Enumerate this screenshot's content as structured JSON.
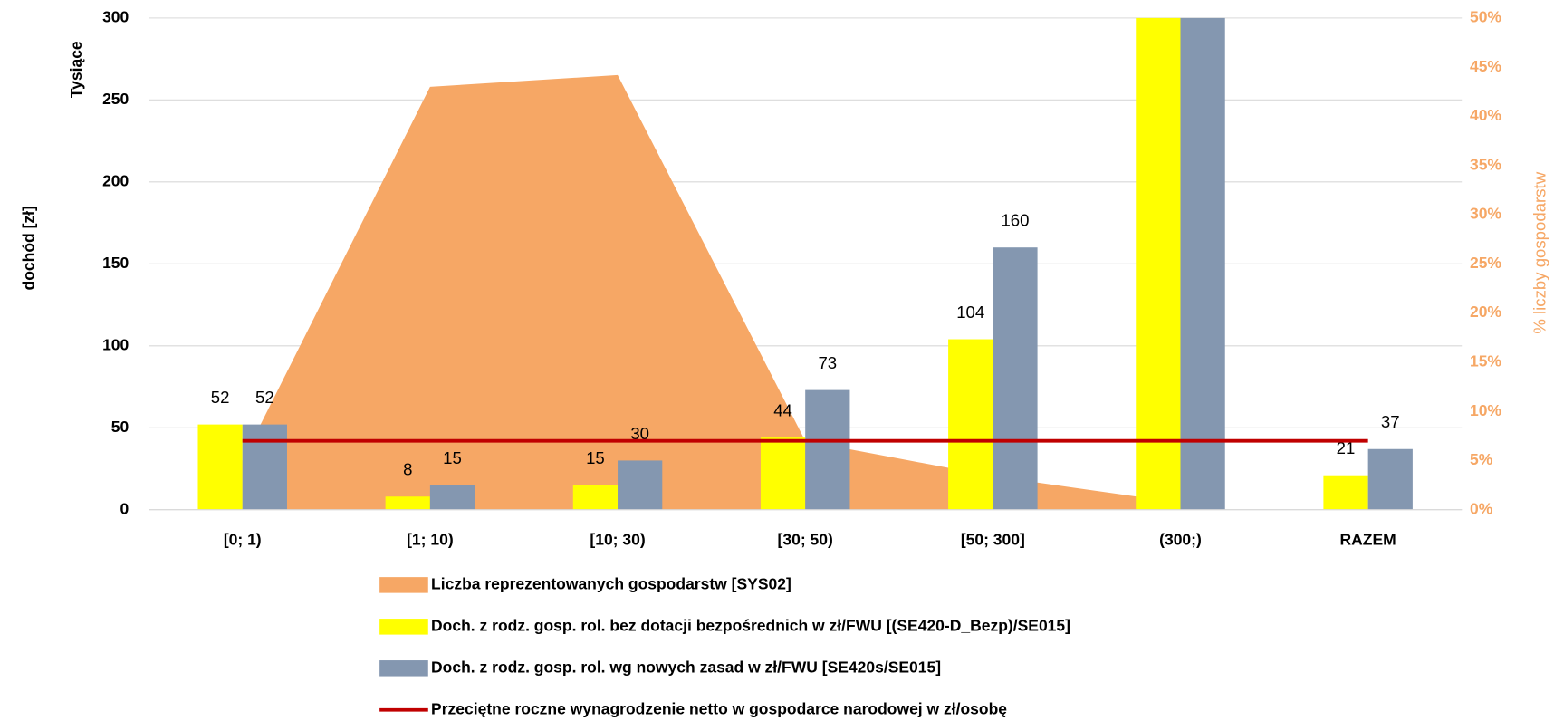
{
  "chart_data": {
    "type": "bar-area-line",
    "categories": [
      "[0; 1)",
      "[1; 10)",
      "[10; 30)",
      "[30; 50)",
      "[50; 300]",
      "(300;)",
      "RAZEM"
    ],
    "y_label": "dochód [zł]",
    "y_unit_label": "Tysiące",
    "y2_label": "% liczby gospodarstw",
    "ylim": [
      0,
      300
    ],
    "yticks": [
      0,
      50,
      100,
      150,
      200,
      250,
      300
    ],
    "y2lim": [
      0,
      50
    ],
    "y2ticks": [
      {
        "value": 0,
        "label": "0%"
      },
      {
        "value": 5,
        "label": "5%"
      },
      {
        "value": 10,
        "label": "10%"
      },
      {
        "value": 15,
        "label": "15%"
      },
      {
        "value": 20,
        "label": "20%"
      },
      {
        "value": 25,
        "label": "25%"
      },
      {
        "value": 30,
        "label": "30%"
      },
      {
        "value": 35,
        "label": "35%"
      },
      {
        "value": 40,
        "label": "40%"
      },
      {
        "value": 45,
        "label": "45%"
      },
      {
        "value": 50,
        "label": "50%"
      }
    ],
    "grid": true,
    "series": [
      {
        "name": "Liczba reprezentowanych gospodarstw [SYS02]",
        "type": "area",
        "axis": "y2",
        "color": "#f6a765",
        "values": [
          5,
          43,
          44.2,
          7,
          3.4,
          0.7,
          null
        ]
      },
      {
        "name": "Doch. z rodz. gosp. rol. bez dotacji bezpośrednich w zł/FWU [(SE420-D_Bezp)/SE015]",
        "type": "bar",
        "color": "#ffff00",
        "values": [
          52,
          8,
          15,
          44,
          104,
          300,
          21
        ]
      },
      {
        "name": "Doch. z rodz. gosp. rol. wg nowych zasad w zł/FWU [SE420s/SE015]",
        "type": "bar",
        "color": "#8497b0",
        "values": [
          52,
          15,
          30,
          73,
          160,
          300,
          37
        ]
      },
      {
        "name": "Przeciętne roczne wynagrodzenie netto w gospodarce narodowej w zł/osobę",
        "type": "line",
        "color": "#c00000",
        "values": [
          42,
          42,
          42,
          42,
          42,
          42,
          42
        ]
      }
    ]
  }
}
